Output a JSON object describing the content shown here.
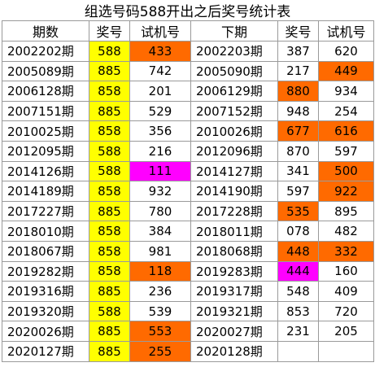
{
  "title": "组选号码588开出之后奖号统计表",
  "headers": [
    "期数",
    "奖号",
    "试机号",
    "下期",
    "奖号",
    "试机号"
  ],
  "colors": {
    "yellow": "#ffff00",
    "orange": "#ff6a00",
    "magenta": "#ff00ff"
  },
  "rows": [
    [
      "2002202期",
      "588",
      "433",
      "2002203期",
      "387",
      "620"
    ],
    [
      "2005089期",
      "885",
      "742",
      "2005090期",
      "217",
      "449"
    ],
    [
      "2006128期",
      "858",
      "201",
      "2006129期",
      "880",
      "934"
    ],
    [
      "2007151期",
      "885",
      "529",
      "2007152期",
      "948",
      "254"
    ],
    [
      "2010025期",
      "858",
      "356",
      "2010026期",
      "677",
      "616"
    ],
    [
      "2012095期",
      "588",
      "216",
      "2012096期",
      "870",
      "597"
    ],
    [
      "2014126期",
      "588",
      "111",
      "2014127期",
      "341",
      "500"
    ],
    [
      "2014189期",
      "858",
      "932",
      "2014190期",
      "597",
      "922"
    ],
    [
      "2017227期",
      "885",
      "780",
      "2017228期",
      "535",
      "895"
    ],
    [
      "2018010期",
      "858",
      "384",
      "2018011期",
      "078",
      "482"
    ],
    [
      "2018067期",
      "858",
      "981",
      "2018068期",
      "448",
      "332"
    ],
    [
      "2019282期",
      "858",
      "118",
      "2019283期",
      "444",
      "160"
    ],
    [
      "2019316期",
      "885",
      "236",
      "2019317期",
      "548",
      "409"
    ],
    [
      "2019320期",
      "588",
      "539",
      "2019321期",
      "853",
      "720"
    ],
    [
      "2020026期",
      "885",
      "553",
      "2020027期",
      "231",
      "205"
    ],
    [
      "2020127期",
      "885",
      "255",
      "2020128期",
      "",
      ""
    ]
  ],
  "highlights": [
    [
      null,
      "yellow",
      "orange",
      null,
      null,
      null
    ],
    [
      null,
      "yellow",
      null,
      null,
      null,
      "orange"
    ],
    [
      null,
      "yellow",
      null,
      null,
      "orange",
      null
    ],
    [
      null,
      "yellow",
      null,
      null,
      null,
      null
    ],
    [
      null,
      "yellow",
      null,
      null,
      "orange",
      "orange"
    ],
    [
      null,
      "yellow",
      null,
      null,
      null,
      null
    ],
    [
      null,
      "yellow",
      "magenta",
      null,
      null,
      "orange"
    ],
    [
      null,
      "yellow",
      null,
      null,
      null,
      "orange"
    ],
    [
      null,
      "yellow",
      null,
      null,
      "orange",
      null
    ],
    [
      null,
      "yellow",
      null,
      null,
      null,
      null
    ],
    [
      null,
      "yellow",
      null,
      null,
      "orange",
      "orange"
    ],
    [
      null,
      "yellow",
      "orange",
      null,
      "magenta",
      null
    ],
    [
      null,
      "yellow",
      null,
      null,
      null,
      null
    ],
    [
      null,
      "yellow",
      null,
      null,
      null,
      null
    ],
    [
      null,
      "yellow",
      "orange",
      null,
      null,
      null
    ],
    [
      null,
      "yellow",
      "orange",
      null,
      null,
      null
    ]
  ]
}
